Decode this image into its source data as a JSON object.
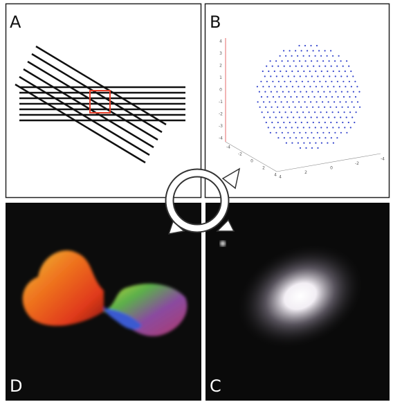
{
  "panels": [
    {
      "label": "A"
    },
    {
      "label": "B",
      "axis_ticks": {
        "vertical": [
          "4",
          "3",
          "2",
          "1",
          "0",
          "-1",
          "-2",
          "-3",
          "-4"
        ],
        "left_depth": [
          "-4",
          "-2",
          "0",
          "2",
          "4"
        ],
        "right_depth": [
          "4",
          "2",
          "0",
          "-2",
          "-4"
        ]
      }
    },
    {
      "label": "D"
    },
    {
      "label": "C"
    }
  ]
}
